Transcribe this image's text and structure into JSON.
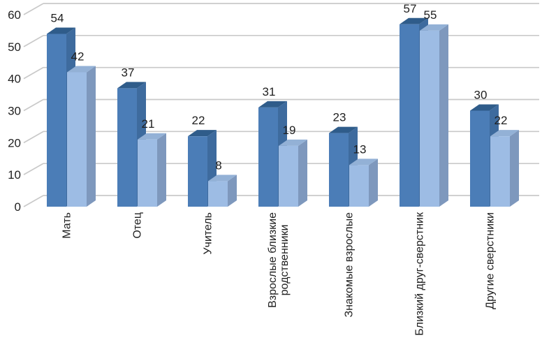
{
  "chart_data": {
    "type": "bar",
    "projection": "3d-clustered-column",
    "title": "",
    "xlabel": "",
    "ylabel": "",
    "categories": [
      "Мать",
      "Отец",
      "Учитель",
      "Взрослые близкие\nродственники",
      "Знакомые взрослые",
      "Близкий друг-сверстник",
      "Другие сверстники"
    ],
    "series": [
      {
        "values": [
          54,
          37,
          22,
          31,
          23,
          57,
          30
        ],
        "front_color": "#4b7db7",
        "top_color": "#2f5c8a",
        "side_color": "#3e6b9e"
      },
      {
        "values": [
          42,
          21,
          8,
          19,
          13,
          55,
          22
        ],
        "front_color": "#9dbce4",
        "top_color": "#93b1d6",
        "side_color": "#7e98bd"
      }
    ],
    "ylim": [
      0,
      60
    ],
    "yticks": [
      0,
      10,
      20,
      30,
      40,
      50,
      60
    ],
    "grid": true,
    "legend": "none",
    "data_labels": true,
    "gridline_color": "#c9c9c9",
    "text_color": "#1f1f1f"
  }
}
